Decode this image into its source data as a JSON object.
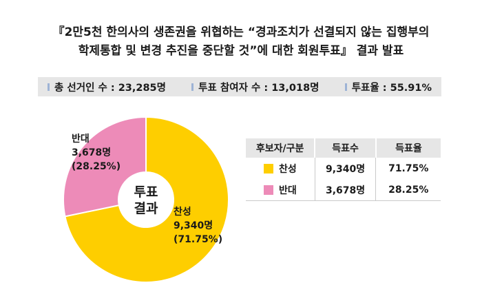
{
  "title": {
    "line1": "『2만5천 한의사의 생존권을 위협하는 “경과조치가 선결되지 않는 집행부의",
    "line2": "학제통합 및 변경 추진을 중단할 것”에 대한 회원투표』 결과 발표"
  },
  "stats": [
    {
      "text": "총 선거인 수 : 23,285명"
    },
    {
      "text": "투표 참여자 수 : 13,018명"
    },
    {
      "text": "투표율 : 55.91%"
    }
  ],
  "chart_data": {
    "type": "pie",
    "center_label": [
      "투표",
      "결과"
    ],
    "slices": [
      {
        "name": "찬성",
        "votes": 9340,
        "percent": 71.75,
        "color": "#fece00",
        "label": [
          "찬성",
          "9,340명",
          "(71.75%)"
        ]
      },
      {
        "name": "반대",
        "votes": 3678,
        "percent": 28.25,
        "color": "#ed8bb8",
        "label": [
          "반대",
          "3,678명",
          "(28.25%)"
        ]
      }
    ]
  },
  "table": {
    "headers": [
      "후보자/구분",
      "득표수",
      "득표율"
    ],
    "rows": [
      {
        "name": "찬성",
        "color": "#fece00",
        "votes": "9,340명",
        "rate": "71.75%"
      },
      {
        "name": "반대",
        "color": "#ed8bb8",
        "votes": "3,678명",
        "rate": "28.25%"
      }
    ]
  }
}
